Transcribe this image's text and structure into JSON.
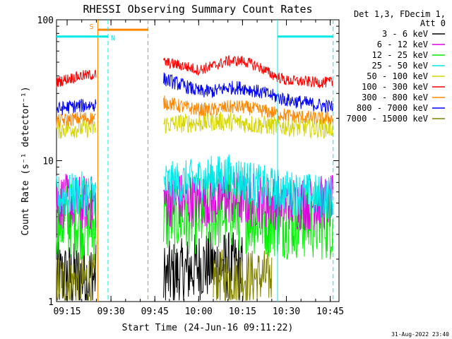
{
  "chart_data": {
    "type": "line",
    "title": "RHESSI Observing Summary Count Rates",
    "xlabel": "Start Time (24-Jun-16 09:11:22)",
    "ylabel": "Count Rate (s⁻¹ detector⁻¹)",
    "y_scale": "log",
    "ylim": [
      1,
      100
    ],
    "y_ticks": [
      {
        "value": 1,
        "label": "1"
      },
      {
        "value": 10,
        "label": "10"
      },
      {
        "value": 100,
        "label": "100"
      }
    ],
    "xlim": [
      "09:11:22",
      "10:48:00"
    ],
    "x_ticks": [
      "09:15",
      "09:30",
      "09:45",
      "10:00",
      "10:15",
      "10:30",
      "10:45"
    ],
    "legend_header": [
      "Det 1,3, FDecim 1,",
      "Att 0"
    ],
    "legend_position": "right-outside",
    "series": [
      {
        "name": "3 - 6 keV",
        "color": "#000000",
        "segments": [
          {
            "t": [
              "09:11:22",
              "09:15",
              "09:20",
              "09:25"
            ],
            "v": [
              1.5,
              1.5,
              1.5,
              1.5
            ]
          },
          {
            "t": [
              "09:48",
              "09:55",
              "10:00",
              "10:05",
              "10:10",
              "10:15"
            ],
            "v": [
              1.5,
              1.6,
              1.8,
              1.8,
              1.8,
              1.7
            ]
          }
        ]
      },
      {
        "name": "6 - 12 keV",
        "color": "#e000e0",
        "segments": [
          {
            "t": [
              "09:11:22",
              "09:15",
              "09:20",
              "09:25"
            ],
            "v": [
              5.2,
              5.1,
              5.0,
              5.0
            ]
          },
          {
            "t": [
              "09:48",
              "10:00",
              "10:10",
              "10:20",
              "10:30",
              "10:40",
              "10:46"
            ],
            "v": [
              5.3,
              5.2,
              5.5,
              5.2,
              5.0,
              5.0,
              5.0
            ]
          }
        ]
      },
      {
        "name": "12 - 25 keV",
        "color": "#00ee00",
        "segments": [
          {
            "t": [
              "09:11:22",
              "09:15",
              "09:20",
              "09:25"
            ],
            "v": [
              3.8,
              3.8,
              3.7,
              3.6
            ]
          },
          {
            "t": [
              "09:48",
              "10:00",
              "10:10",
              "10:20",
              "10:30",
              "10:40",
              "10:46"
            ],
            "v": [
              4.0,
              4.1,
              4.4,
              4.0,
              3.8,
              3.7,
              3.7
            ]
          }
        ]
      },
      {
        "name": "25 - 50 keV",
        "color": "#00e8e8",
        "segments": [
          {
            "t": [
              "09:11:22",
              "09:15",
              "09:20",
              "09:25"
            ],
            "v": [
              5.5,
              5.6,
              5.8,
              5.8
            ]
          },
          {
            "t": [
              "09:48",
              "09:55",
              "10:00",
              "10:05",
              "10:10",
              "10:15",
              "10:20",
              "10:30",
              "10:40",
              "10:46"
            ],
            "v": [
              6.8,
              7.0,
              7.3,
              7.6,
              7.8,
              7.4,
              6.6,
              6.0,
              5.6,
              5.5
            ]
          }
        ]
      },
      {
        "name": "50 - 100 keV",
        "color": "#d6d600",
        "segments": [
          {
            "t": [
              "09:11:22",
              "09:15",
              "09:20",
              "09:25"
            ],
            "v": [
              16.5,
              17,
              17,
              17
            ]
          },
          {
            "t": [
              "09:48",
              "09:55",
              "10:00",
              "10:05",
              "10:10",
              "10:15",
              "10:20",
              "10:30",
              "10:40",
              "10:46"
            ],
            "v": [
              18,
              18.5,
              18.5,
              19,
              19,
              18.5,
              18,
              17.5,
              17,
              17
            ]
          }
        ]
      },
      {
        "name": "100 - 300 keV",
        "color": "#ff0000",
        "segments": [
          {
            "t": [
              "09:11:22",
              "09:15",
              "09:20",
              "09:25"
            ],
            "v": [
              36,
              38,
              40,
              41
            ]
          },
          {
            "t": [
              "09:48",
              "09:55",
              "10:00",
              "10:05",
              "10:10",
              "10:15",
              "10:20",
              "10:25",
              "10:30",
              "10:40",
              "10:46"
            ],
            "v": [
              50,
              47,
              44,
              47,
              51,
              51,
              47,
              41,
              37,
              36,
              36
            ]
          }
        ]
      },
      {
        "name": "300 - 800 keV",
        "color": "#ff8800",
        "segments": [
          {
            "t": [
              "09:11:22",
              "09:15",
              "09:20",
              "09:25"
            ],
            "v": [
              19,
              19.5,
              20,
              20
            ]
          },
          {
            "t": [
              "09:48",
              "09:55",
              "10:00",
              "10:05",
              "10:10",
              "10:15",
              "10:20",
              "10:30",
              "10:40",
              "10:46"
            ],
            "v": [
              26,
              24,
              23,
              23,
              24,
              24,
              23,
              21,
              20,
              20
            ]
          }
        ]
      },
      {
        "name": "800 - 7000 keV",
        "color": "#0000ff",
        "segments": [
          {
            "t": [
              "09:11:22",
              "09:15",
              "09:20",
              "09:25"
            ],
            "v": [
              23,
              24,
              24.5,
              25
            ]
          },
          {
            "t": [
              "09:48",
              "09:55",
              "10:00",
              "10:05",
              "10:10",
              "10:15",
              "10:20",
              "10:30",
              "10:40",
              "10:46"
            ],
            "v": [
              38,
              34,
              31,
              31,
              33,
              33,
              31,
              27,
              25,
              24
            ]
          }
        ]
      },
      {
        "name": "7000 - 15000 keV",
        "color": "#808000",
        "segments": [
          {
            "t": [
              "09:11:22",
              "09:15",
              "09:20",
              "09:25"
            ],
            "v": [
              1.4,
              1.4,
              1.4,
              1.4
            ]
          },
          {
            "t": [
              "10:05",
              "10:10",
              "10:15",
              "10:20",
              "10:25"
            ],
            "v": [
              1.5,
              1.5,
              1.5,
              1.5,
              1.5
            ]
          }
        ]
      }
    ],
    "annotations": [
      {
        "type": "vline",
        "time": "09:25:30",
        "color": "#ff8800",
        "style": "solid"
      },
      {
        "type": "vline",
        "time": "09:42:40",
        "color": "#ff8800",
        "style": "dashed"
      },
      {
        "type": "hbar",
        "label": "S",
        "from": "09:25:30",
        "to": "09:42:40",
        "value": 85,
        "color": "#ff8800"
      },
      {
        "type": "vline",
        "time": "09:29:00",
        "color": "#00e8e8",
        "style": "dashed"
      },
      {
        "type": "hbar",
        "label": "N",
        "from": "09:11:22",
        "to": "09:29:00",
        "value": 76,
        "color": "#00e8e8"
      },
      {
        "type": "vline",
        "time": "10:27:00",
        "color": "#00e8e8",
        "style": "solid"
      },
      {
        "type": "hbar",
        "label": "",
        "from": "10:27:00",
        "to": "10:46:00",
        "value": 76,
        "color": "#00e8e8"
      },
      {
        "type": "vline",
        "time": "10:46:00",
        "color": "#00e8e8",
        "style": "dashed"
      }
    ],
    "footer_date": "31-Aug-2022 23:40"
  }
}
